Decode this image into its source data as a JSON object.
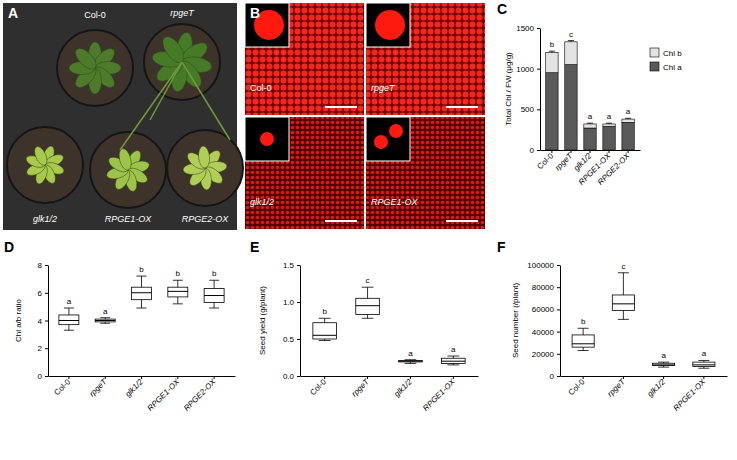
{
  "chart_data": [
    {
      "type": "bar",
      "stacked": true,
      "title": "C",
      "ylabel": "Total Chl / FW (μg/g)",
      "categories": [
        "Col-0",
        "rpgeT",
        "glk1/2",
        "RPGE1-OX",
        "RPGE2-OX"
      ],
      "series": [
        {
          "name": "Chl a",
          "color": "#5a5a5a",
          "values": [
            950,
            1050,
            270,
            290,
            340
          ],
          "errors": [
            50,
            50,
            20,
            15,
            15
          ]
        },
        {
          "name": "Chl b",
          "color": "#e3e3e3",
          "values": [
            250,
            280,
            50,
            30,
            40
          ],
          "errors": [
            15,
            15,
            10,
            10,
            10
          ]
        }
      ],
      "annotations": [
        "b",
        "c",
        "a",
        "a",
        "a"
      ],
      "ylim": [
        0,
        1500
      ],
      "yticks": [
        0,
        500,
        1000,
        1500
      ],
      "legend": "right"
    },
    {
      "type": "box",
      "title": "D",
      "ylabel": "Chl a/b ratio",
      "categories": [
        "Col-0",
        "rpgeT",
        "glk1/2",
        "RPGE1-OX",
        "RPGE2-OX"
      ],
      "min": [
        3.3,
        3.8,
        4.9,
        5.2,
        4.9
      ],
      "q1": [
        3.7,
        3.9,
        5.5,
        5.7,
        5.3
      ],
      "median": [
        4.0,
        4.0,
        6.0,
        6.1,
        5.8
      ],
      "q3": [
        4.4,
        4.1,
        6.4,
        6.4,
        6.3
      ],
      "max": [
        4.9,
        4.2,
        7.2,
        6.9,
        6.9
      ],
      "annotations": [
        "a",
        "a",
        "b",
        "b",
        "b"
      ],
      "ylim": [
        0,
        8
      ],
      "yticks": [
        0,
        2,
        4,
        6,
        8
      ]
    },
    {
      "type": "box",
      "title": "E",
      "ylabel": "Seed yield (g/plant)",
      "categories": [
        "Col-0",
        "rpgeT",
        "glk1/2",
        "RPGE1-OX"
      ],
      "min": [
        0.48,
        0.78,
        0.17,
        0.15
      ],
      "q1": [
        0.5,
        0.83,
        0.19,
        0.17
      ],
      "median": [
        0.55,
        0.95,
        0.2,
        0.2
      ],
      "q3": [
        0.72,
        1.05,
        0.21,
        0.24
      ],
      "max": [
        0.78,
        1.2,
        0.22,
        0.27
      ],
      "annotations": [
        "b",
        "c",
        "a",
        "a"
      ],
      "ylim": [
        0,
        1.5
      ],
      "yticks": [
        {
          "value": 0,
          "label": "0.0"
        },
        0.5,
        {
          "value": 1,
          "label": "1.0"
        },
        1.5
      ]
    },
    {
      "type": "box",
      "title": "F",
      "ylabel": "Seed number (/plant)",
      "categories": [
        "Col-0",
        "rpgeT",
        "glk1/2",
        "RPGE1-OX"
      ],
      "min": [
        23000,
        51000,
        8000,
        7000
      ],
      "q1": [
        26000,
        59000,
        9500,
        8500
      ],
      "median": [
        29000,
        65000,
        10000,
        10000
      ],
      "q3": [
        37000,
        73000,
        11500,
        12500
      ],
      "max": [
        43000,
        93000,
        12500,
        14000
      ],
      "annotations": [
        "b",
        "c",
        "a",
        "a"
      ],
      "ylim": [
        0,
        100000
      ],
      "yticks": [
        0,
        20000,
        40000,
        60000,
        80000,
        100000
      ]
    }
  ],
  "images": [
    {
      "title": "A",
      "labels": [
        "Col-0",
        "rpgeT",
        "glk1/2",
        "RPGE1-OX",
        "RPGE2-OX"
      ]
    },
    {
      "title": "B",
      "labels": [
        "Col-0",
        "rpgeT",
        "glk1/2",
        "RPGE1-OX"
      ]
    }
  ]
}
